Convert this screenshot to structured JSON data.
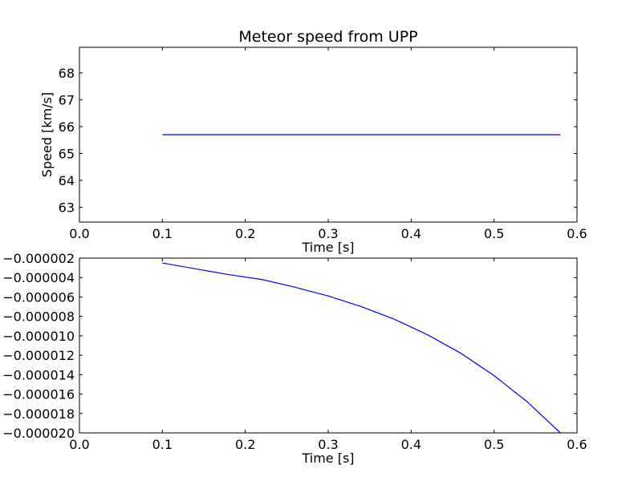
{
  "chart_data": [
    {
      "type": "line",
      "title": "Meteor speed from  UPP",
      "xlabel": "Time [s]",
      "ylabel": "Speed [km/s]",
      "xlim": [
        0.0,
        0.6
      ],
      "ylim": [
        62.45,
        68.95
      ],
      "xticks": [
        0.0,
        0.1,
        0.2,
        0.3,
        0.4,
        0.5,
        0.6
      ],
      "xtick_labels": [
        "0.0",
        "0.1",
        "0.2",
        "0.3",
        "0.4",
        "0.5",
        "0.6"
      ],
      "yticks": [
        63,
        64,
        65,
        66,
        67,
        68
      ],
      "ytick_labels": [
        "63",
        "64",
        "65",
        "66",
        "67",
        "68"
      ],
      "grid": false,
      "series": [
        {
          "color": "#0000ff",
          "x": [
            0.1,
            0.14,
            0.18,
            0.22,
            0.26,
            0.3,
            0.34,
            0.38,
            0.42,
            0.46,
            0.5,
            0.54,
            0.58
          ],
          "y": [
            65.7,
            65.7,
            65.7,
            65.7,
            65.7,
            65.7,
            65.7,
            65.7,
            65.7,
            65.7,
            65.7,
            65.7,
            65.7
          ]
        }
      ]
    },
    {
      "type": "line",
      "title": "",
      "xlabel": "Time [s]",
      "ylabel": "",
      "xlim": [
        0.0,
        0.6
      ],
      "ylim": [
        -2e-05,
        -2e-06
      ],
      "xticks": [
        0.0,
        0.1,
        0.2,
        0.3,
        0.4,
        0.5,
        0.6
      ],
      "xtick_labels": [
        "0.0",
        "0.1",
        "0.2",
        "0.3",
        "0.4",
        "0.5",
        "0.6"
      ],
      "yticks": [
        -2e-06,
        -4e-06,
        -6e-06,
        -8e-06,
        -1e-05,
        -1.2e-05,
        -1.4e-05,
        -1.6e-05,
        -1.8e-05,
        -2e-05
      ],
      "ytick_labels": [
        "−0.000002",
        "−0.000004",
        "−0.000006",
        "−0.000008",
        "−0.000010",
        "−0.000012",
        "−0.000014",
        "−0.000016",
        "−0.000018",
        "−0.000020"
      ],
      "grid": false,
      "series": [
        {
          "color": "#0000ff",
          "x": [
            0.1,
            0.14,
            0.18,
            0.22,
            0.26,
            0.3,
            0.34,
            0.38,
            0.42,
            0.46,
            0.5,
            0.54,
            0.58
          ],
          "y": [
            -2.5e-06,
            -3.1e-06,
            -3.7e-06,
            -4.2e-06,
            -5e-06,
            -5.9e-06,
            -7e-06,
            -8.3e-06,
            -9.9e-06,
            -1.18e-05,
            -1.41e-05,
            -1.68e-05,
            -2e-05
          ]
        }
      ]
    }
  ]
}
